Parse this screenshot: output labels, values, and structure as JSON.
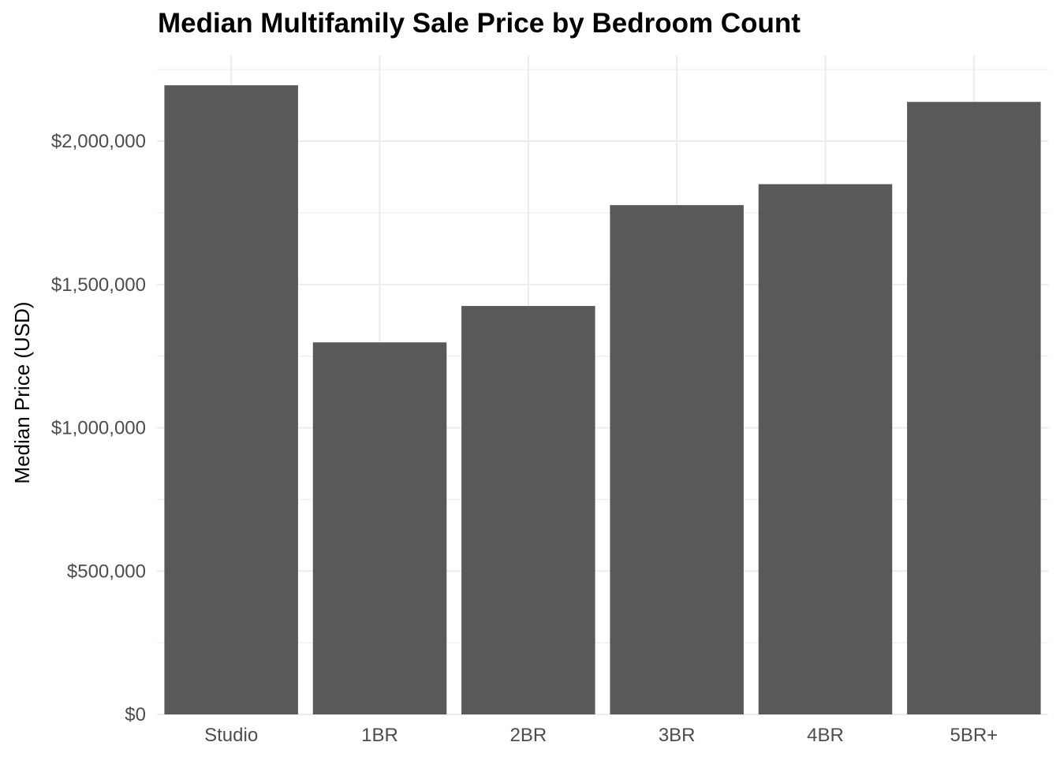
{
  "chart_data": {
    "type": "bar",
    "title": "Median Multifamily Sale Price by Bedroom Count",
    "xlabel": "",
    "ylabel": "Median Price (USD)",
    "categories": [
      "Studio",
      "1BR",
      "2BR",
      "3BR",
      "4BR",
      "5BR+"
    ],
    "values": [
      2195000,
      1298000,
      1425000,
      1777000,
      1850000,
      2137000
    ],
    "ylim": [
      0,
      2300000
    ],
    "yticks": [
      0,
      500000,
      1000000,
      1500000,
      2000000
    ],
    "ytick_labels": [
      "$0",
      "$500,000",
      "$1,000,000",
      "$1,500,000",
      "$2,000,000"
    ],
    "bar_color": "#595959",
    "grid_color": "#ebebeb",
    "grid": true,
    "legend": "none"
  }
}
